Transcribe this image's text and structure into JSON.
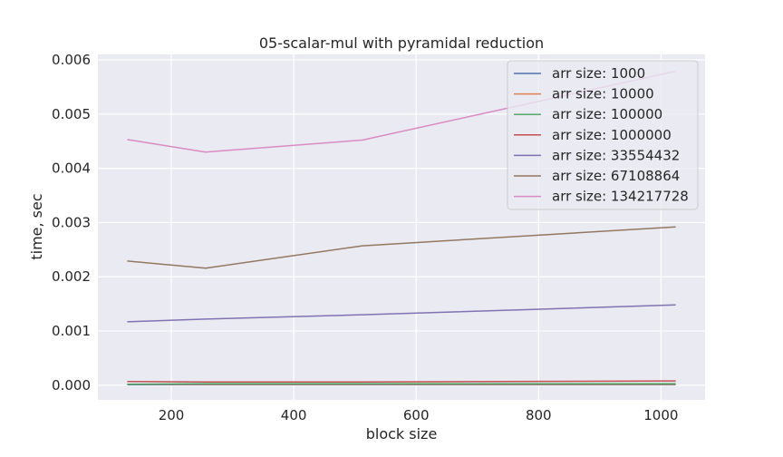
{
  "chart_data": {
    "type": "line",
    "title": "05-scalar-mul with pyramidal reduction",
    "xlabel": "block size",
    "ylabel": "time, sec",
    "x": [
      128,
      256,
      512,
      1024
    ],
    "xlim": [
      80,
      1072
    ],
    "ylim": [
      -0.00027,
      0.0061
    ],
    "xticks": [
      "200",
      "400",
      "600",
      "800",
      "1000"
    ],
    "xtick_values": [
      200,
      400,
      600,
      800,
      1000
    ],
    "yticks": [
      "0.000",
      "0.001",
      "0.002",
      "0.003",
      "0.004",
      "0.005",
      "0.006"
    ],
    "ytick_values": [
      0,
      0.001,
      0.002,
      0.003,
      0.004,
      0.005,
      0.006
    ],
    "grid": true,
    "legend_position": "top-right",
    "series": [
      {
        "name": "arr size: 1000",
        "color": "#4c72b0",
        "values": [
          1e-05,
          1e-05,
          1e-05,
          1e-05
        ]
      },
      {
        "name": "arr size: 10000",
        "color": "#dd8452",
        "values": [
          2e-05,
          2e-05,
          2e-05,
          2e-05
        ]
      },
      {
        "name": "arr size: 100000",
        "color": "#55a868",
        "values": [
          2e-05,
          3e-05,
          3e-05,
          3e-05
        ]
      },
      {
        "name": "arr size: 1000000",
        "color": "#c44e52",
        "values": [
          7e-05,
          6e-05,
          6e-05,
          8e-05
        ]
      },
      {
        "name": "arr size: 33554432",
        "color": "#8172b3",
        "values": [
          0.00117,
          0.00122,
          0.0013,
          0.00148
        ]
      },
      {
        "name": "arr size: 67108864",
        "color": "#937860",
        "values": [
          0.00229,
          0.00216,
          0.00257,
          0.00292
        ]
      },
      {
        "name": "arr size: 134217728",
        "color": "#da8bc3",
        "values": [
          0.00453,
          0.0043,
          0.00452,
          0.00579
        ]
      }
    ]
  }
}
